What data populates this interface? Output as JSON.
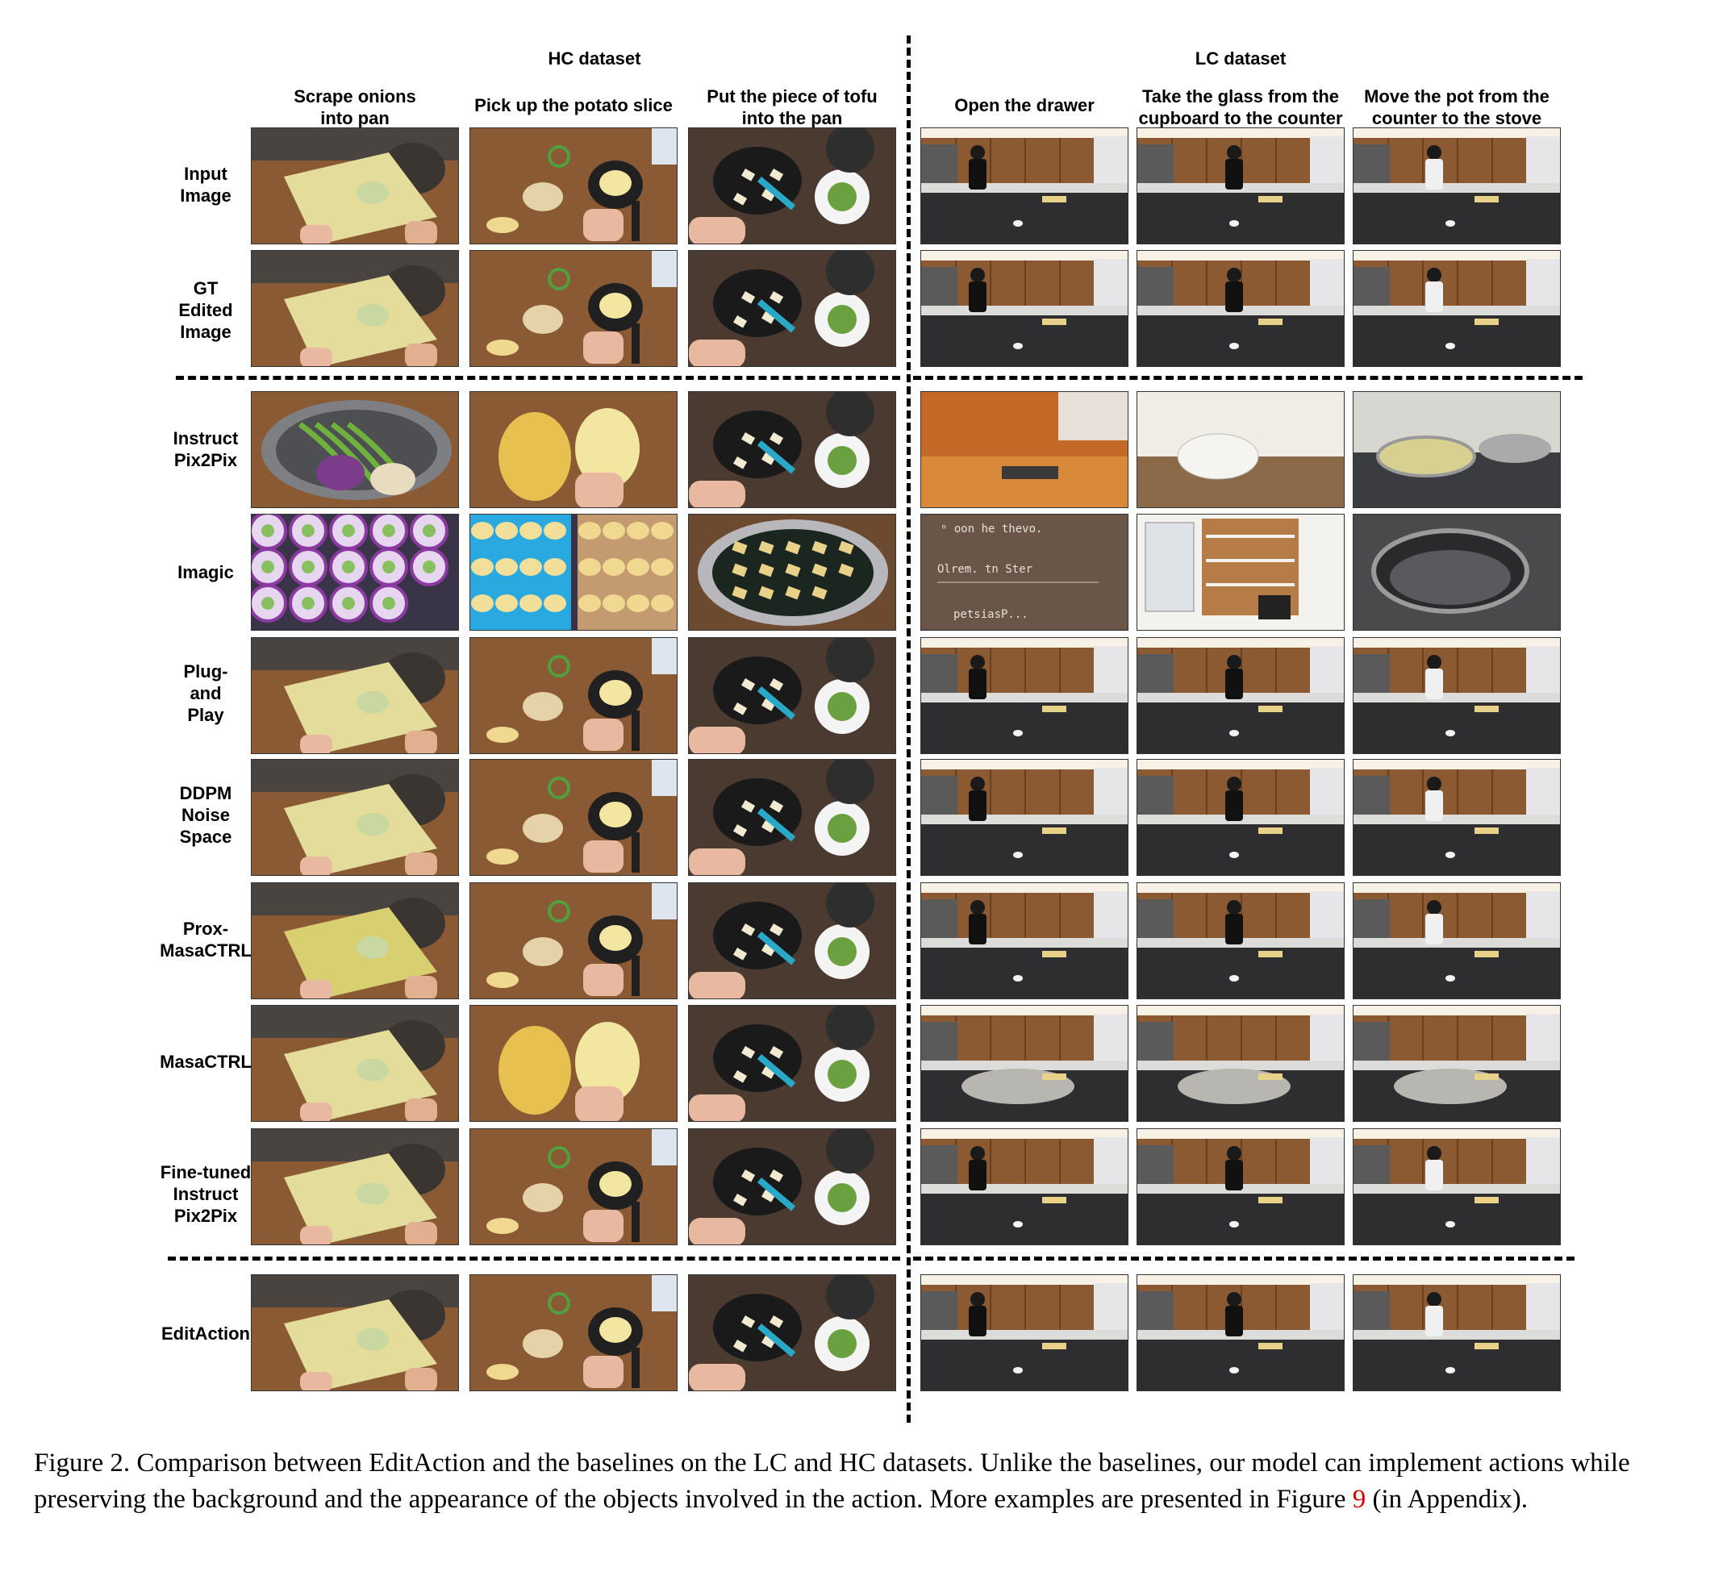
{
  "datasets": {
    "hc": "HC dataset",
    "lc": "LC dataset"
  },
  "columns": [
    "Scrape onions\ninto pan",
    "Pick up the potato slice",
    "Put the piece of tofu\ninto the pan",
    "Open the drawer",
    "Take the glass from the\ncupboard to the counter",
    "Move the pot from the\ncounter to the stove"
  ],
  "rows": [
    "Input\nImage",
    "GT\nEdited\nImage",
    "Instruct\nPix2Pix",
    "Imagic",
    "Plug-\nand\nPlay",
    "DDPM\nNoise\nSpace",
    "Prox-\nMasaCTRL",
    "MasaCTRL",
    "Fine-tuned\nInstruct\nPix2Pix",
    "EditAction"
  ],
  "imagic_drawer_text": [
    "ᵒ oon he thevo.",
    "Olrem. tn Ster",
    "petsiasP..."
  ],
  "caption": {
    "prefix": "Figure 2. Comparison between EditAction and the baselines on the LC and HC datasets. Unlike the baselines, our model can implement actions while preserving the background and the appearance of the objects involved in the action. More examples are presented in Figure ",
    "figure_ref": "9",
    "suffix": " (in Appendix)."
  },
  "colors": {
    "hc_counter": "#8a5a34",
    "lc_cabinet": "#8b5a32",
    "lc_counter": "#2e2e30"
  }
}
